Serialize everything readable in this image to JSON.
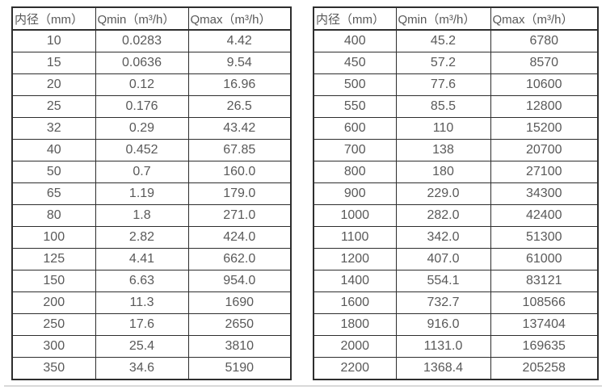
{
  "styles": {
    "text_color": "#595959",
    "border_color": "#2e2e2e",
    "divider_color": "#d9d9d9"
  },
  "tables": [
    {
      "name": "flow-range-table-small-diameters",
      "headers": [
        "内径（mm）",
        "Qmin（m³/h）",
        "Qmax（m³/h）"
      ],
      "rows": [
        [
          "10",
          "0.0283",
          "4.42"
        ],
        [
          "15",
          "0.0636",
          "9.54"
        ],
        [
          "20",
          "0.12",
          "16.96"
        ],
        [
          "25",
          "0.176",
          "26.5"
        ],
        [
          "32",
          "0.29",
          "43.42"
        ],
        [
          "40",
          "0.452",
          "67.85"
        ],
        [
          "50",
          "0.7",
          "160.0"
        ],
        [
          "65",
          "1.19",
          "179.0"
        ],
        [
          "80",
          "1.8",
          "271.0"
        ],
        [
          "100",
          "2.82",
          "424.0"
        ],
        [
          "125",
          "4.41",
          "662.0"
        ],
        [
          "150",
          "6.63",
          "954.0"
        ],
        [
          "200",
          "11.3",
          "1690"
        ],
        [
          "250",
          "17.6",
          "2650"
        ],
        [
          "300",
          "25.4",
          "3810"
        ],
        [
          "350",
          "34.6",
          "5190"
        ]
      ]
    },
    {
      "name": "flow-range-table-large-diameters",
      "headers": [
        "内径（mm）",
        "Qmin（m³/h）",
        "Qmax（m³/h）"
      ],
      "rows": [
        [
          "400",
          "45.2",
          "6780"
        ],
        [
          "450",
          "57.2",
          "8570"
        ],
        [
          "500",
          "77.6",
          "10600"
        ],
        [
          "550",
          "85.5",
          "12800"
        ],
        [
          "600",
          "110",
          "15200"
        ],
        [
          "700",
          "138",
          "20700"
        ],
        [
          "800",
          "180",
          "27100"
        ],
        [
          "900",
          "229.0",
          "34300"
        ],
        [
          "1000",
          "282.0",
          "42400"
        ],
        [
          "1100",
          "342.0",
          "51300"
        ],
        [
          "1200",
          "407.0",
          "61000"
        ],
        [
          "1400",
          "554.1",
          "83121"
        ],
        [
          "1600",
          "732.7",
          "108566"
        ],
        [
          "1800",
          "916.0",
          "137404"
        ],
        [
          "2000",
          "1131.0",
          "169635"
        ],
        [
          "2200",
          "1368.4",
          "205258"
        ]
      ]
    }
  ]
}
